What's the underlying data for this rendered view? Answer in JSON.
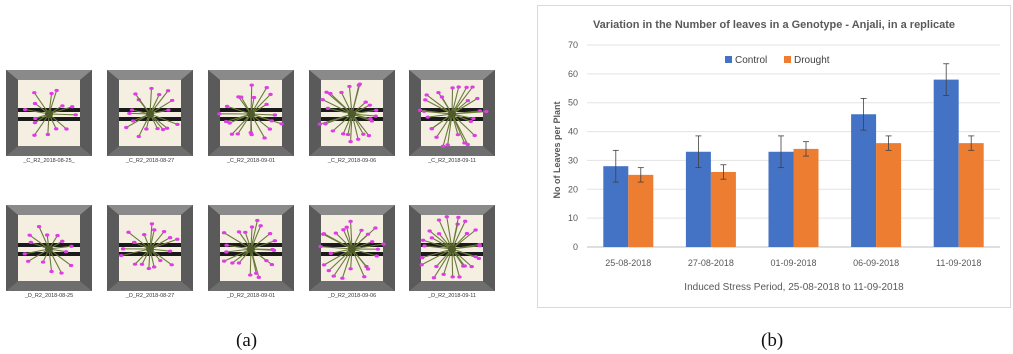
{
  "panel_a": {
    "label": "(a)",
    "captions": [
      "_C_R2_2018-08-25_",
      "_C_R2_2018-08-27",
      "_C_R2_2018-09-01",
      "_C_R2_2018-09-06",
      "_C_R2_2018-09-11",
      "_D_R2_2018-08-25",
      "_D_R2_2018-08-27",
      "_D_R2_2018-09-01",
      "_D_R2_2018-09-06",
      "_D_R2_2018-09-11"
    ],
    "colors": {
      "frame": "#4a4a4a",
      "floor": "#f5efe2",
      "marker": "#e03ce6",
      "plant": "#6b7a3a"
    }
  },
  "panel_b": {
    "label": "(b)"
  },
  "chart_data": {
    "type": "bar",
    "title": "Variation in the Number of leaves  in a Genotype - Anjali, in a replicate",
    "xlabel": "Induced Stress Period, 25-08-2018 to 11-09-2018",
    "ylabel": "No of Leaves per Plant",
    "categories": [
      "25-08-2018",
      "27-08-2018",
      "01-09-2018",
      "06-09-2018",
      "11-09-2018"
    ],
    "ylim": [
      0,
      70
    ],
    "yticks": [
      0,
      10,
      20,
      30,
      40,
      50,
      60,
      70
    ],
    "grid": true,
    "legend_position": "top-left",
    "series": [
      {
        "name": "Control",
        "color": "#4472c4",
        "values": [
          28,
          33,
          33,
          46,
          58
        ],
        "errors": [
          5.5,
          5.5,
          5.5,
          5.5,
          5.5
        ]
      },
      {
        "name": "Drought",
        "color": "#ed7d31",
        "values": [
          25,
          26,
          34,
          36,
          36
        ],
        "errors": [
          2.5,
          2.5,
          2.5,
          2.5,
          2.5
        ]
      }
    ]
  }
}
